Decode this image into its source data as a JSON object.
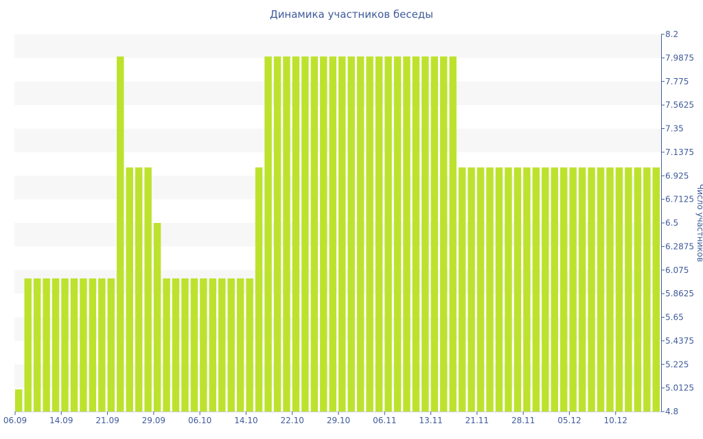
{
  "chart_data": {
    "type": "bar",
    "title": "Динамика участников беседы",
    "ylabel": "Число участников",
    "xlabel": "",
    "ylim": [
      4.8,
      8.2
    ],
    "y_ticks": [
      "4.8",
      "5.0125",
      "5.225",
      "5.4375",
      "5.65",
      "5.8625",
      "6.075",
      "6.2875",
      "6.5",
      "6.7125",
      "6.925",
      "7.1375",
      "7.35",
      "7.5625",
      "7.775",
      "7.9875",
      "8.2"
    ],
    "x_tick_labels": [
      "06.09",
      "14.09",
      "21.09",
      "29.09",
      "06.10",
      "14.10",
      "22.10",
      "29.10",
      "06.11",
      "13.11",
      "21.11",
      "28.11",
      "05.12",
      "10.12"
    ],
    "grid": "horizontal bands",
    "bar_color": "#bde22e",
    "band_color": "#f7f7f7",
    "axis_color": "#3f5a9a",
    "series": [
      {
        "values": [
          5,
          6,
          6,
          6,
          6,
          6,
          6,
          6,
          6,
          6,
          6,
          8,
          7,
          7,
          7,
          6.5,
          6,
          6,
          6,
          6,
          6,
          6,
          6,
          6,
          6,
          6,
          7,
          8,
          8,
          8,
          8,
          8,
          8,
          8,
          8,
          8,
          8,
          8,
          8,
          8,
          8,
          8,
          8,
          8,
          8,
          8,
          8,
          8,
          7,
          7,
          7,
          7,
          7,
          7,
          7,
          7,
          7,
          7,
          7,
          7,
          7,
          7,
          7,
          7,
          7,
          7,
          7,
          7,
          7,
          7
        ]
      }
    ]
  }
}
